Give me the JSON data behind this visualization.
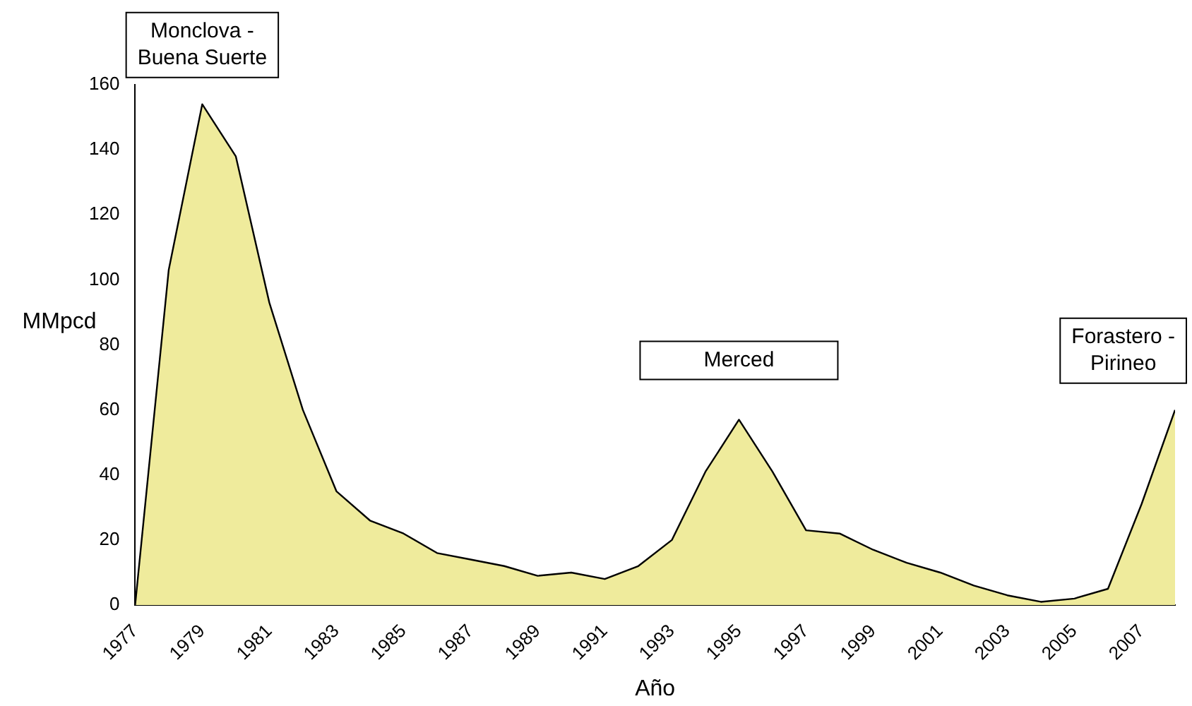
{
  "chart_data": {
    "type": "area",
    "xlabel": "Año",
    "ylabel": "MMpcd",
    "x": [
      1977,
      1978,
      1979,
      1980,
      1981,
      1982,
      1983,
      1984,
      1985,
      1986,
      1987,
      1988,
      1989,
      1990,
      1991,
      1992,
      1993,
      1994,
      1995,
      1996,
      1997,
      1998,
      1999,
      2000,
      2001,
      2002,
      2003,
      2004,
      2005,
      2006,
      2007,
      2008
    ],
    "series": [
      {
        "color": "#efeb9c",
        "values": [
          0,
          103,
          154,
          138,
          93,
          60,
          35,
          26,
          22,
          16,
          14,
          12,
          9,
          10,
          8,
          12,
          20,
          41,
          57,
          41,
          23,
          22,
          17,
          13,
          10,
          6,
          3,
          1,
          2,
          5,
          31,
          60
        ]
      }
    ],
    "xlim": [
      1977,
      2008
    ],
    "xticks": [
      1977,
      1979,
      1981,
      1983,
      1985,
      1987,
      1989,
      1991,
      1993,
      1995,
      1997,
      1999,
      2001,
      2003,
      2005,
      2007
    ],
    "ylim": [
      0,
      160
    ],
    "yticks": [
      0,
      20,
      40,
      60,
      80,
      100,
      120,
      140,
      160
    ],
    "grid": false,
    "legend": false,
    "annotations": [
      {
        "text": "Monclova - Buena Suerte",
        "x": 1979,
        "y": 154
      },
      {
        "text": "Merced",
        "x": 1995,
        "y": 57
      },
      {
        "text": "Forastero - Pirineo",
        "x": 2008,
        "y": 60
      }
    ]
  }
}
